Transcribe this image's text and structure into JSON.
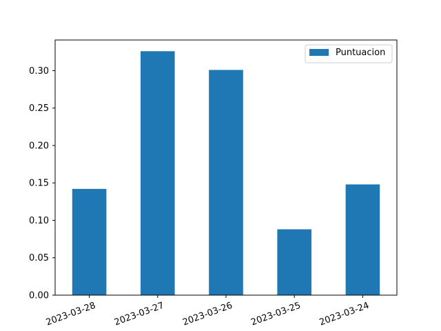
{
  "chart_data": {
    "type": "bar",
    "categories": [
      "2023-03-28",
      "2023-03-27",
      "2023-03-26",
      "2023-03-25",
      "2023-03-24"
    ],
    "series": [
      {
        "name": "Puntuacion",
        "values": [
          0.142,
          0.326,
          0.301,
          0.088,
          0.148
        ],
        "color": "#1f77b4"
      }
    ],
    "title": "",
    "xlabel": "",
    "ylabel": "",
    "ylim": [
      0,
      0.341
    ],
    "yticks": [
      0.0,
      0.05,
      0.1,
      0.15,
      0.2,
      0.25,
      0.3
    ],
    "ytick_labels": [
      "0.00",
      "0.05",
      "0.10",
      "0.15",
      "0.20",
      "0.25",
      "0.30"
    ],
    "xtick_rotation": 20,
    "grid": false,
    "legend_position": "top-right"
  }
}
